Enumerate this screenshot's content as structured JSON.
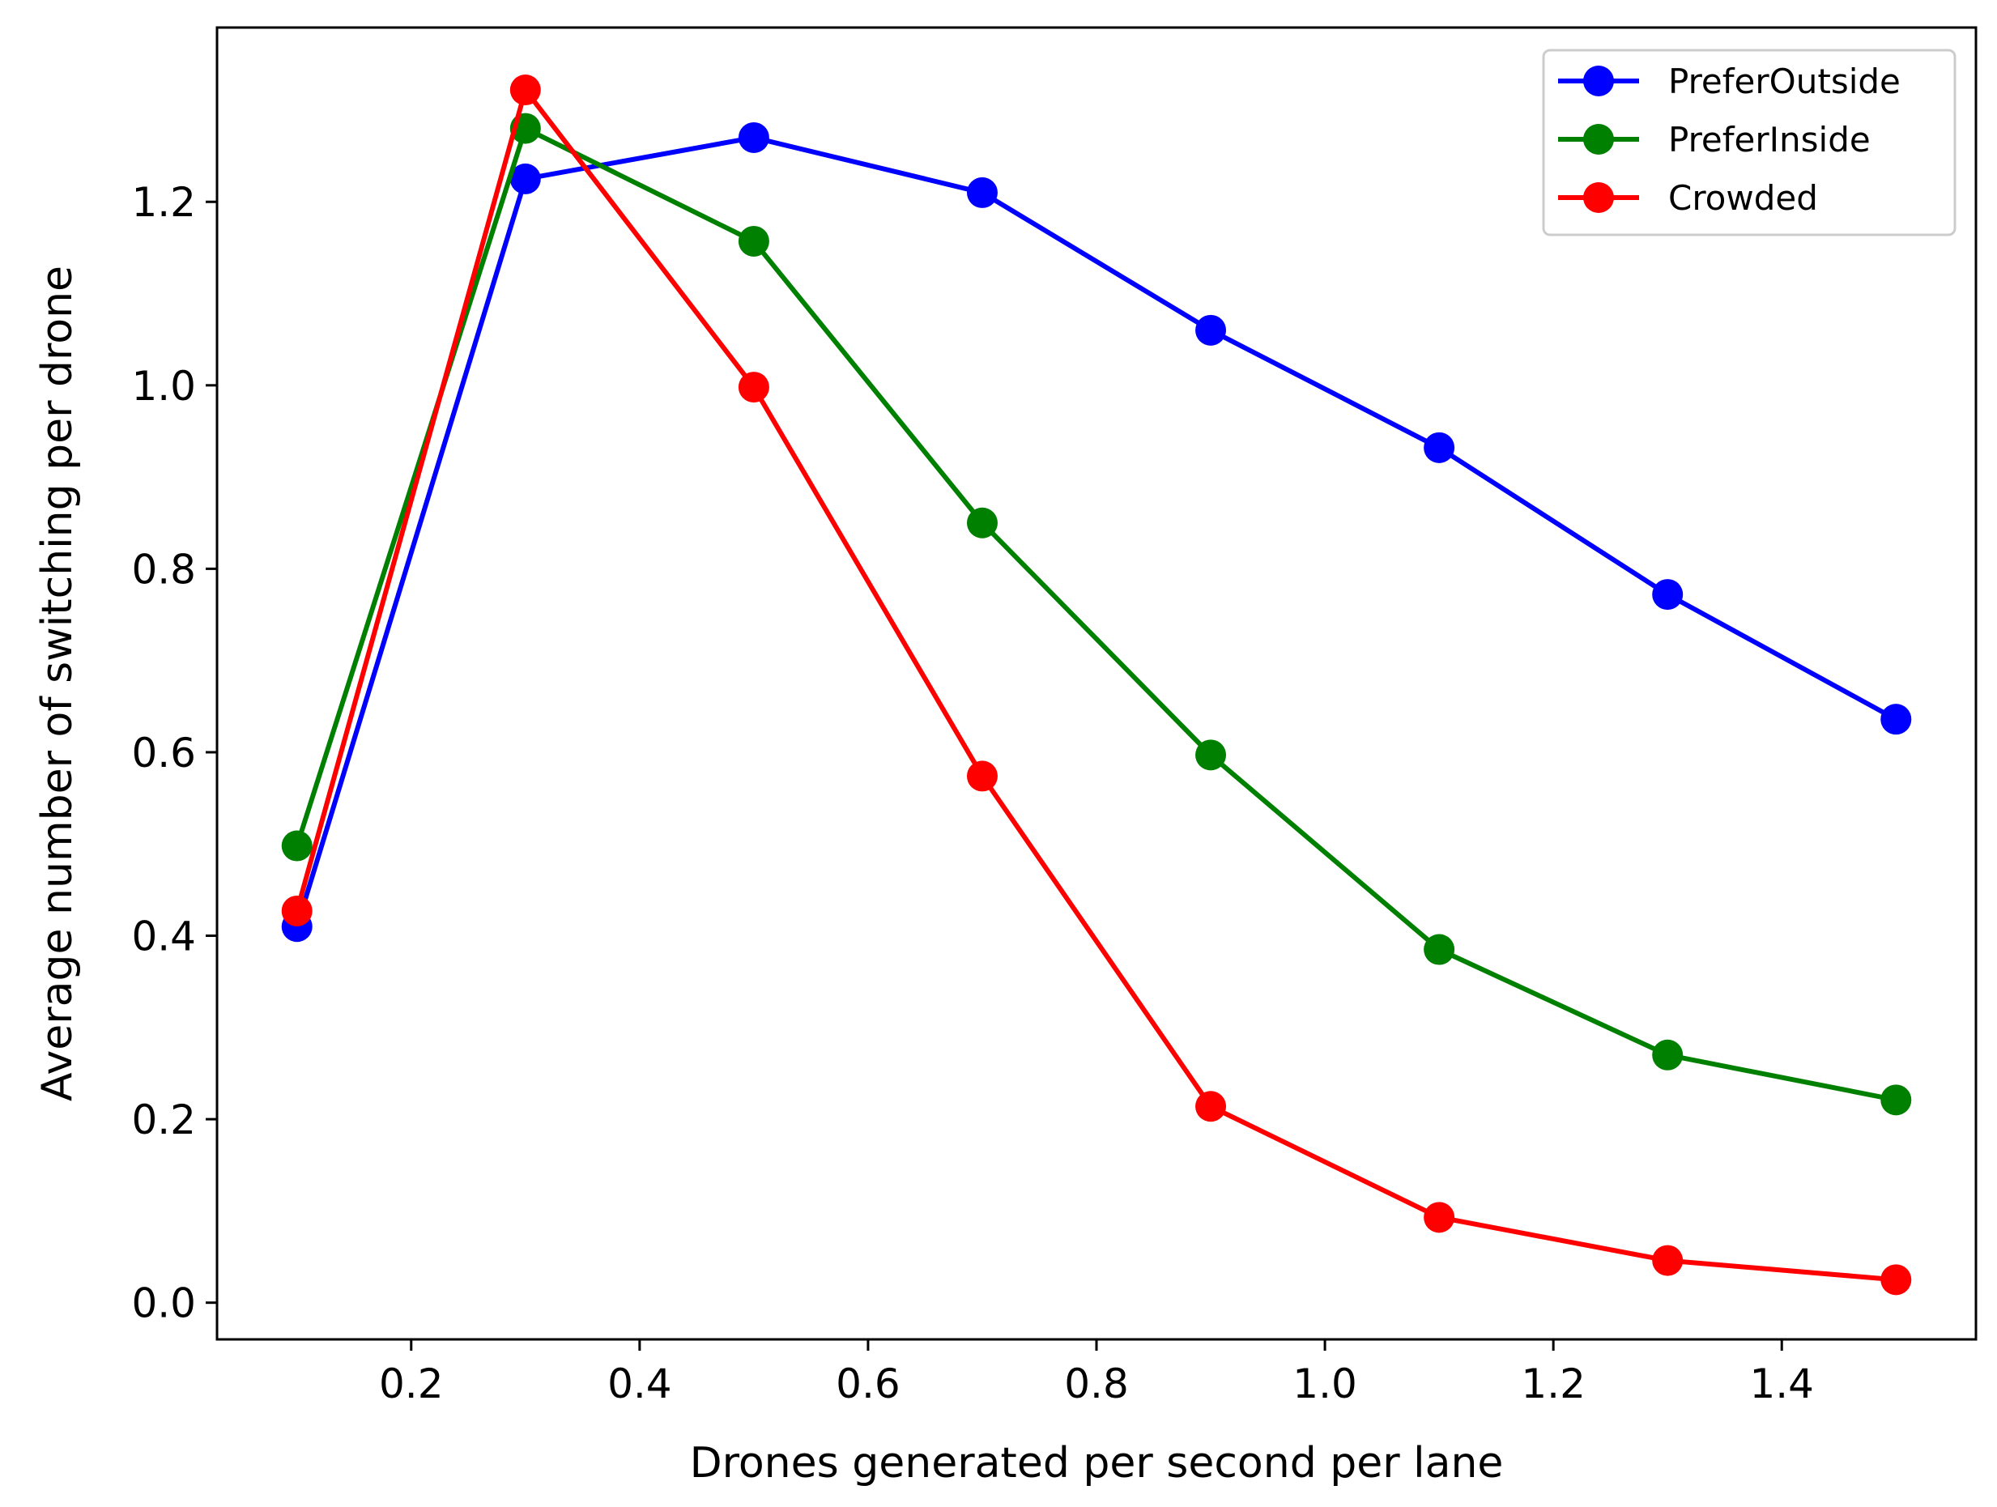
{
  "chart_data": {
    "type": "line",
    "title": "",
    "xlabel": "Drones generated per second per lane",
    "ylabel": "Average number of switching per drone",
    "xlim": [
      0.03,
      1.57
    ],
    "ylim": [
      -0.04,
      1.39
    ],
    "xticks": [
      0.2,
      0.4,
      0.6,
      0.8,
      1.0,
      1.2,
      1.4
    ],
    "xtick_labels": [
      "0.2",
      "0.4",
      "0.6",
      "0.8",
      "1.0",
      "1.2",
      "1.4"
    ],
    "yticks": [
      0.0,
      0.2,
      0.4,
      0.6,
      0.8,
      1.0,
      1.2
    ],
    "ytick_labels": [
      "0.0",
      "0.2",
      "0.4",
      "0.6",
      "0.8",
      "1.0",
      "1.2"
    ],
    "grid": false,
    "legend_position": "top-right",
    "x": [
      0.1,
      0.3,
      0.5,
      0.7,
      0.9,
      1.1,
      1.3,
      1.5
    ],
    "series": [
      {
        "name": "PreferOutside",
        "color": "#0000ff",
        "values": [
          0.41,
          1.225,
          1.27,
          1.21,
          1.06,
          0.932,
          0.772,
          0.636
        ]
      },
      {
        "name": "PreferInside",
        "color": "#008000",
        "values": [
          0.498,
          1.28,
          1.157,
          0.85,
          0.597,
          0.385,
          0.27,
          0.221
        ]
      },
      {
        "name": "Crowded",
        "color": "#ff0000",
        "values": [
          0.427,
          1.322,
          0.998,
          0.574,
          0.214,
          0.093,
          0.046,
          0.025
        ]
      }
    ]
  }
}
